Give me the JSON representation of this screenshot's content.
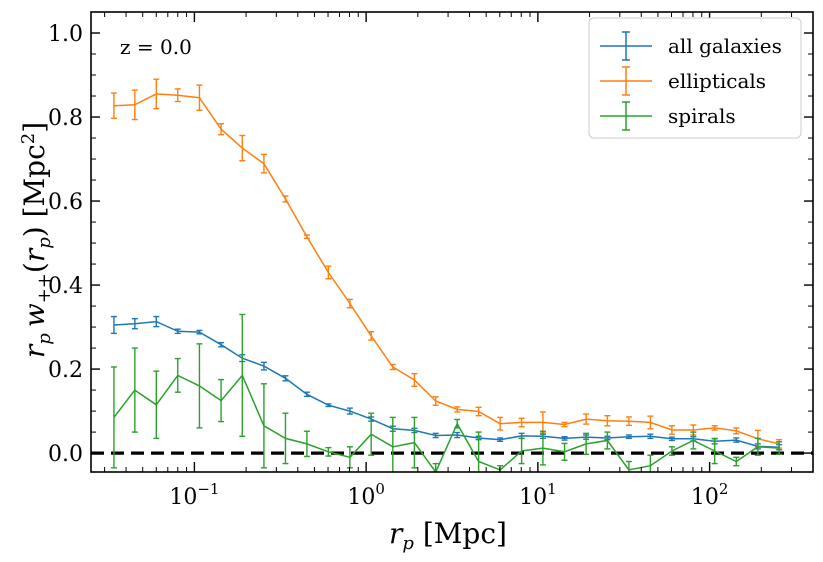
{
  "chart_data": {
    "type": "line",
    "annotation": "z = 0.0",
    "xlabel_parts": {
      "var": "r",
      "sub": "p",
      "unit": " [Mpc]"
    },
    "ylabel_parts": {
      "r": "r",
      "rsub": "p",
      "w": "w",
      "wsub": "++",
      "arg_open": "(",
      "arg_var": "r",
      "arg_sub": "p",
      "arg_close": ")",
      "unit_open": " [Mpc",
      "unit_sup": "2",
      "unit_close": "]"
    },
    "xscale": "log",
    "xlim": [
      0.025,
      400
    ],
    "ylim": [
      -0.045,
      1.05
    ],
    "yticks": [
      0.0,
      0.2,
      0.4,
      0.6,
      0.8,
      1.0
    ],
    "ytick_labels": [
      "0.0",
      "0.2",
      "0.4",
      "0.6",
      "0.8",
      "1.0"
    ],
    "xticks": [
      {
        "value": 0.1,
        "base": "10",
        "exp": "−1"
      },
      {
        "value": 1,
        "base": "10",
        "exp": "0"
      },
      {
        "value": 10,
        "base": "10",
        "exp": "1"
      },
      {
        "value": 100,
        "base": "10",
        "exp": "2"
      }
    ],
    "reference_line": {
      "y": 0.0,
      "style": "dashed",
      "color": "#000000"
    },
    "legend_position": "top-right",
    "x": [
      0.034,
      0.045,
      0.06,
      0.08,
      0.107,
      0.143,
      0.19,
      0.254,
      0.339,
      0.452,
      0.603,
      0.804,
      1.07,
      1.43,
      1.91,
      2.54,
      3.39,
      4.52,
      6.03,
      8.04,
      10.7,
      14.3,
      19.1,
      25.4,
      33.9,
      45.2,
      60.3,
      80.4,
      107,
      143,
      191,
      254
    ],
    "series": [
      {
        "name": "all galaxies",
        "color": "#1f77b4",
        "values": [
          0.305,
          0.308,
          0.313,
          0.29,
          0.288,
          0.258,
          0.226,
          0.207,
          0.178,
          0.14,
          0.114,
          0.1,
          0.081,
          0.058,
          0.054,
          0.042,
          0.043,
          0.036,
          0.032,
          0.041,
          0.04,
          0.035,
          0.038,
          0.036,
          0.039,
          0.04,
          0.034,
          0.034,
          0.028,
          0.031,
          0.016,
          0.014
        ],
        "errors": [
          0.02,
          0.012,
          0.012,
          0.005,
          0.004,
          0.005,
          0.008,
          0.009,
          0.006,
          0.005,
          0.003,
          0.007,
          0.005,
          0.006,
          0.005,
          0.005,
          0.006,
          0.004,
          0.004,
          0.006,
          0.005,
          0.004,
          0.005,
          0.004,
          0.004,
          0.005,
          0.004,
          0.005,
          0.006,
          0.005,
          0.006,
          0.006
        ]
      },
      {
        "name": "ellipticals",
        "color": "#ff7f0e",
        "values": [
          0.827,
          0.829,
          0.855,
          0.852,
          0.846,
          0.771,
          0.726,
          0.689,
          0.605,
          0.515,
          0.43,
          0.356,
          0.279,
          0.205,
          0.174,
          0.124,
          0.104,
          0.099,
          0.07,
          0.073,
          0.073,
          0.068,
          0.081,
          0.077,
          0.076,
          0.073,
          0.055,
          0.055,
          0.06,
          0.053,
          0.034,
          0.022
        ],
        "errors": [
          0.03,
          0.035,
          0.035,
          0.015,
          0.03,
          0.013,
          0.03,
          0.022,
          0.007,
          0.004,
          0.015,
          0.01,
          0.01,
          0.006,
          0.015,
          0.01,
          0.006,
          0.01,
          0.015,
          0.01,
          0.025,
          0.005,
          0.012,
          0.012,
          0.01,
          0.015,
          0.01,
          0.012,
          0.005,
          0.007,
          0.02,
          0.01
        ]
      },
      {
        "name": "spirals",
        "color": "#2ca02c",
        "values": [
          0.085,
          0.15,
          0.115,
          0.185,
          0.16,
          0.125,
          0.185,
          0.065,
          0.035,
          0.022,
          0.003,
          -0.01,
          0.045,
          0.015,
          0.025,
          -0.045,
          0.07,
          -0.02,
          -0.04,
          0.005,
          0.012,
          0.003,
          0.022,
          0.03,
          -0.04,
          -0.03,
          0.005,
          0.03,
          0.005,
          -0.02,
          0.015,
          0.012
        ]
      }
    ],
    "spiral_errors": [
      0.12,
      0.1,
      0.08,
      0.04,
      0.1,
      0.05,
      0.145,
      0.1,
      0.06,
      0.03,
      0.01,
      0.025,
      0.05,
      0.07,
      0.06,
      0.02,
      0.01,
      0.07,
      0.01,
      0.03,
      0.04,
      0.02,
      0.025,
      0.02,
      0.02,
      0.025,
      0.01,
      0.02,
      0.03,
      0.01,
      0.02,
      0.015
    ]
  }
}
